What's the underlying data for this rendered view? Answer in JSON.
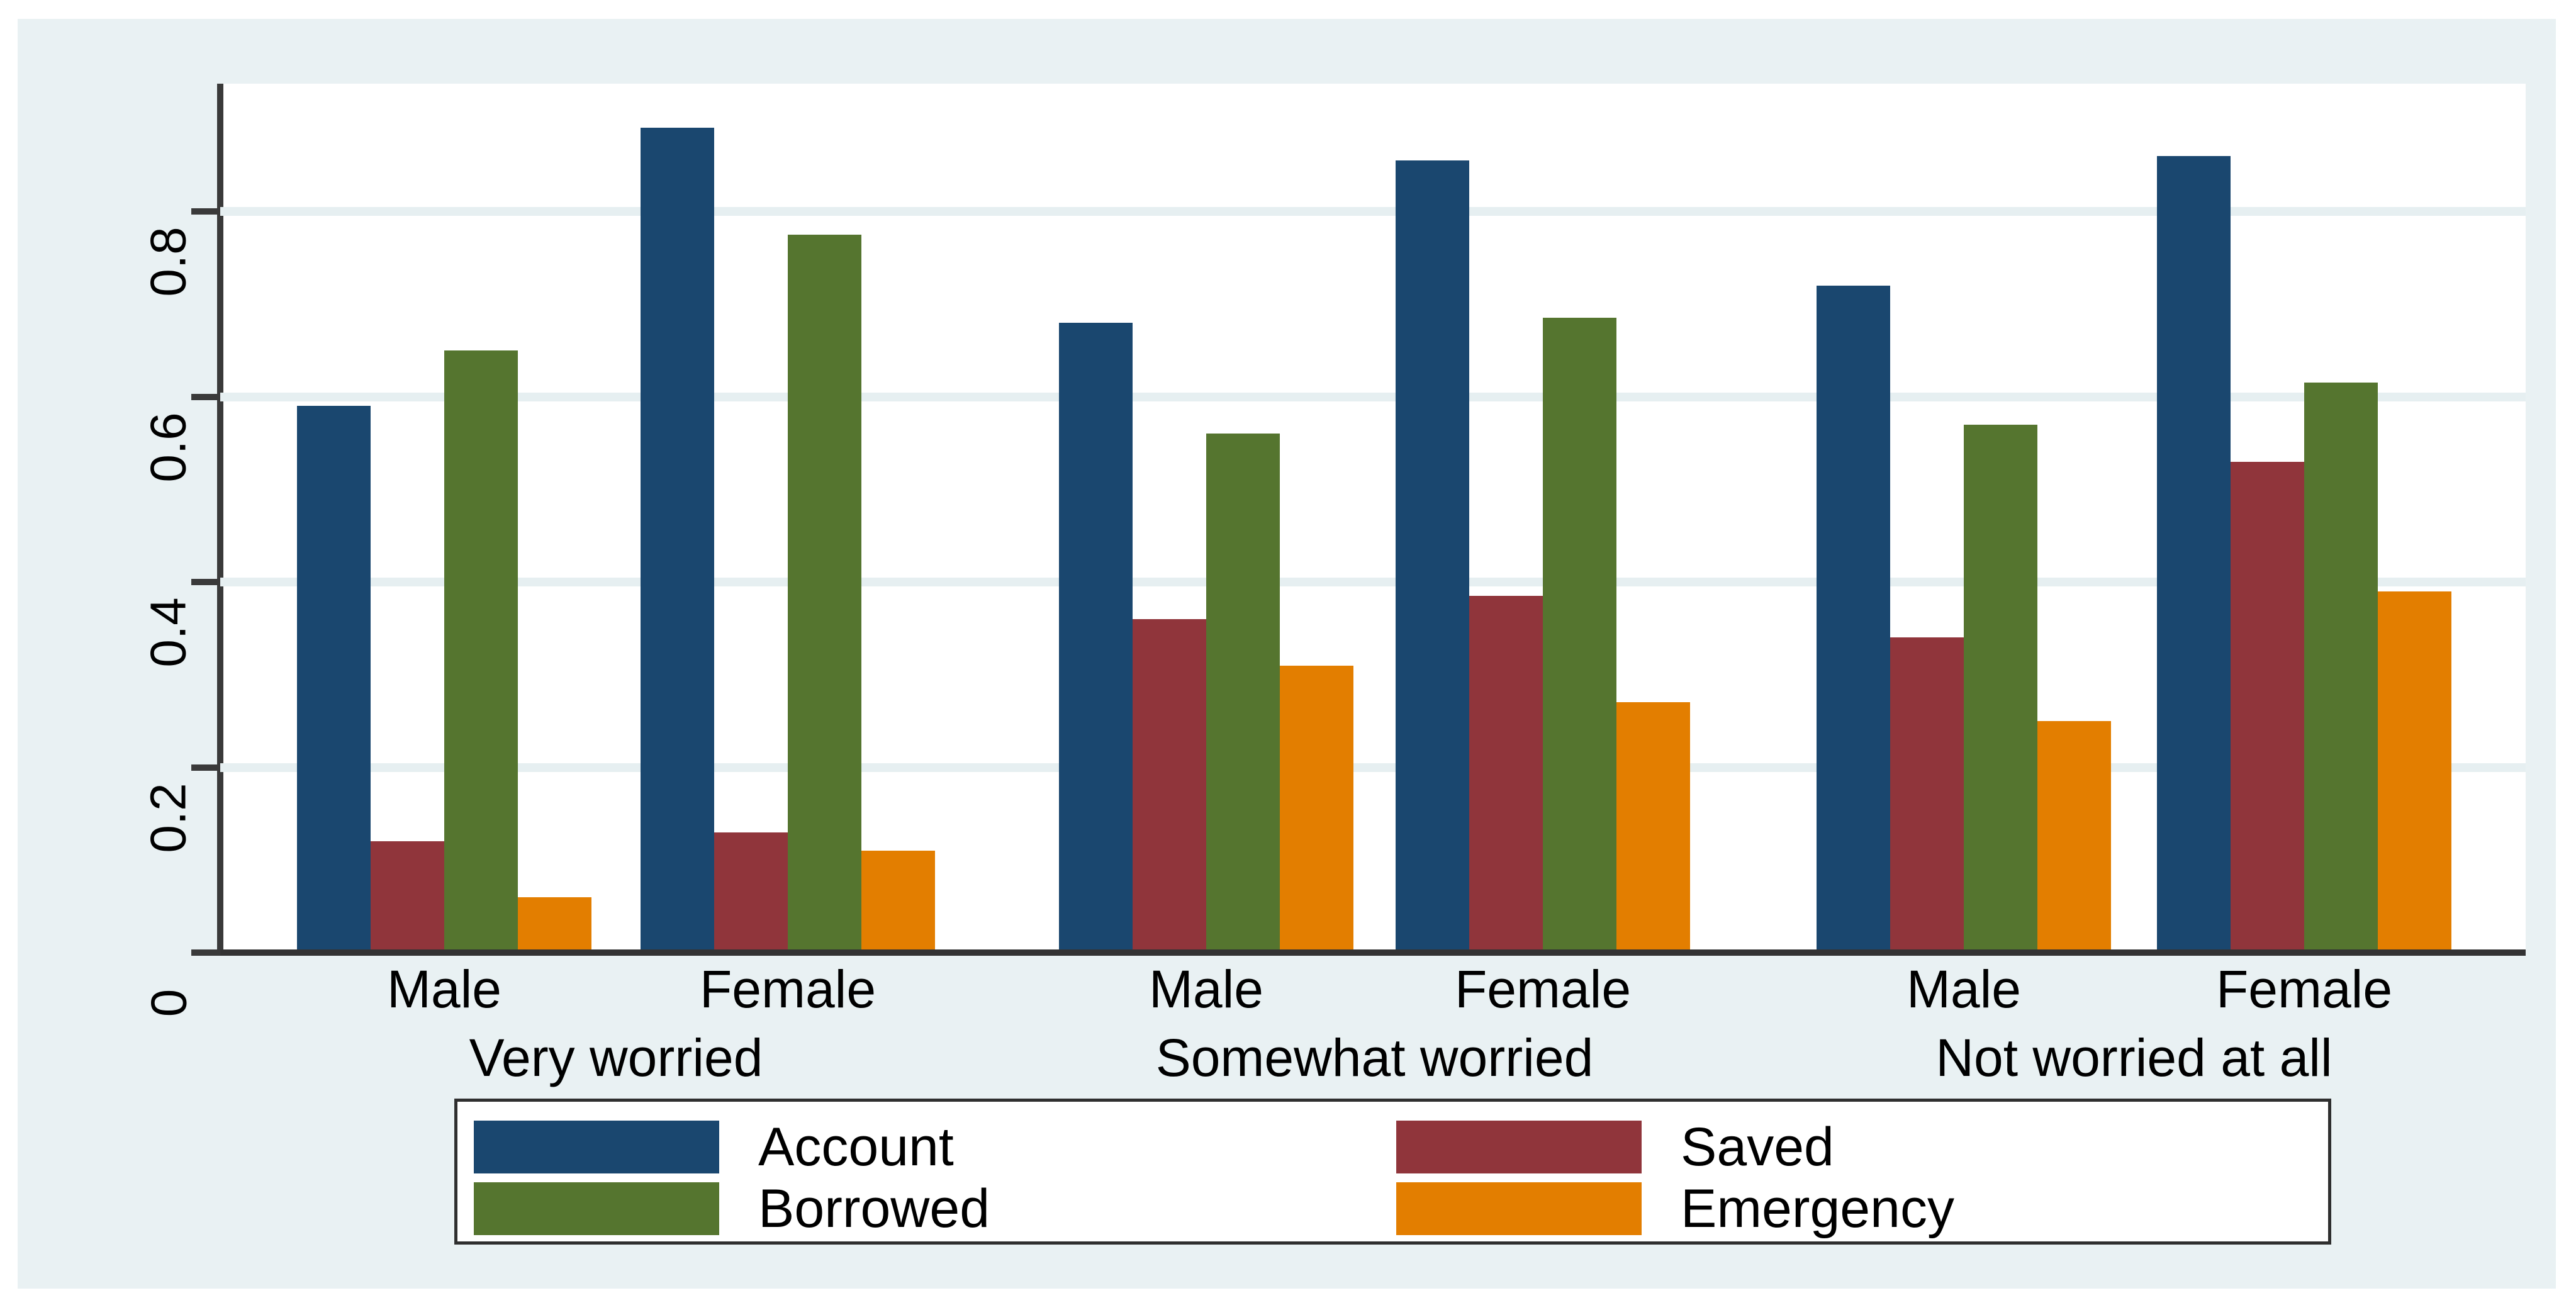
{
  "chart_data": {
    "type": "bar",
    "title": "",
    "xlabel": "",
    "ylabel": "",
    "ylim": [
      0,
      0.94
    ],
    "yticks": [
      0,
      0.2,
      0.4,
      0.6,
      0.8
    ],
    "ytick_labels": [
      "0",
      "0.2",
      "0.4",
      "0.6",
      "0.8"
    ],
    "grid": true,
    "legend_position": "bottom",
    "series": [
      {
        "name": "Account",
        "color": "#1a476f"
      },
      {
        "name": "Saved",
        "color": "#90353b"
      },
      {
        "name": "Borrowed",
        "color": "#55752f"
      },
      {
        "name": "Emergency",
        "color": "#e37e00"
      }
    ],
    "groups": [
      {
        "label": "Very worried",
        "clusters": [
          {
            "label": "Male",
            "values": [
              0.59,
              0.12,
              0.65,
              0.06
            ]
          },
          {
            "label": "Female",
            "values": [
              0.89,
              0.13,
              0.775,
              0.11
            ]
          }
        ]
      },
      {
        "label": "Somewhat worried",
        "clusters": [
          {
            "label": "Male",
            "values": [
              0.68,
              0.36,
              0.56,
              0.31
            ]
          },
          {
            "label": "Female",
            "values": [
              0.855,
              0.385,
              0.685,
              0.27
            ]
          }
        ]
      },
      {
        "label": "Not worried at all",
        "clusters": [
          {
            "label": "Male",
            "values": [
              0.72,
              0.34,
              0.57,
              0.25
            ]
          },
          {
            "label": "Female",
            "values": [
              0.86,
              0.53,
              0.615,
              0.39
            ]
          }
        ]
      }
    ],
    "legend_rows": [
      [
        "Account",
        "Saved"
      ],
      [
        "Borrowed",
        "Emergency"
      ]
    ]
  },
  "style": {
    "canvas_bg": "#e9f1f3",
    "plot_bg": "#ffffff",
    "grid_color": "#e6eff1",
    "axis_color": "#3a3a3a",
    "text_color": "#000000",
    "legend_border": "#2f2f2f"
  }
}
